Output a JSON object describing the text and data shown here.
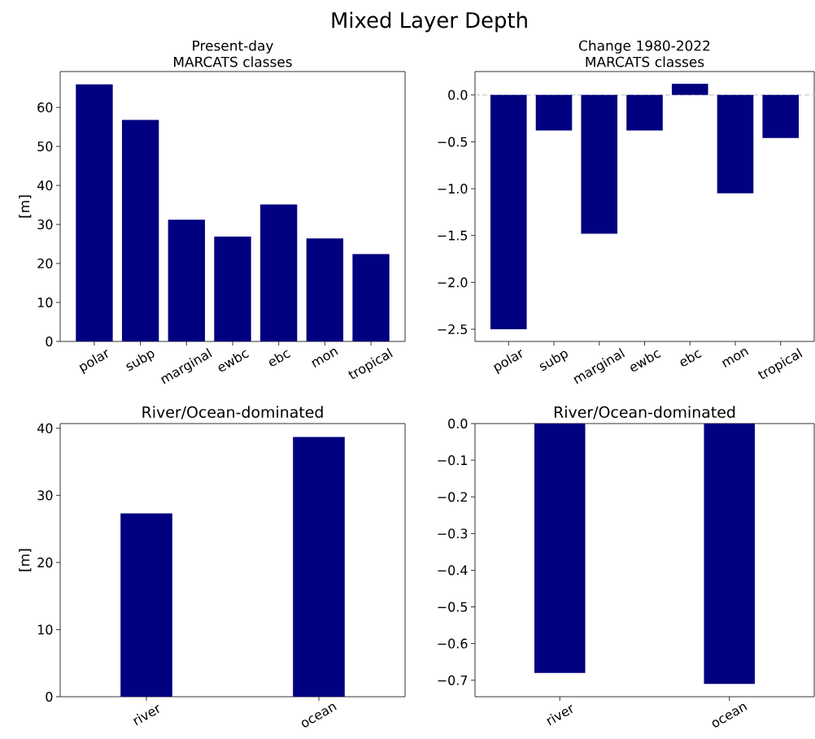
{
  "chart_data": [
    {
      "type": "bar",
      "title": "Present-day MARCATS classes",
      "ylabel": "[m]",
      "annotations": [
        "Mixed Layer Depth"
      ],
      "categories": [
        "polar",
        "subp",
        "marginal",
        "ewbc",
        "ebc",
        "mon",
        "tropical"
      ],
      "values": [
        65.9,
        56.8,
        31.2,
        26.9,
        35.1,
        26.4,
        22.4
      ],
      "color": "#000080",
      "ylim": [
        0,
        69.2
      ],
      "yticks": [
        0,
        10,
        20,
        30,
        40,
        50,
        60
      ]
    },
    {
      "type": "bar",
      "title": "Change 1980-2022 MARCATS classes",
      "categories": [
        "polar",
        "subp",
        "marginal",
        "ewbc",
        "ebc",
        "mon",
        "tropical"
      ],
      "values": [
        -2.5,
        -0.38,
        -1.48,
        -0.38,
        0.12,
        -1.05,
        -0.46
      ],
      "color": "#000080",
      "ylim": [
        -2.63,
        0.25
      ],
      "yticks": [
        {
          "value": -2.5,
          "label": "−2.5"
        },
        {
          "value": -2.0,
          "label": "−2.0"
        },
        {
          "value": -1.5,
          "label": "−1.5"
        },
        {
          "value": -1.0,
          "label": "−1.0"
        },
        {
          "value": -0.5,
          "label": "−0.5"
        },
        {
          "value": 0,
          "label": "0.0"
        }
      ],
      "ref_lines": [
        {
          "axis": "y",
          "value": 0,
          "color": "#cccccc",
          "line_style": "dashed"
        }
      ]
    },
    {
      "type": "bar",
      "title": "River/Ocean-dominated",
      "ylabel": "[m]",
      "categories": [
        "river",
        "ocean"
      ],
      "values": [
        27.3,
        38.7
      ],
      "color": "#000080",
      "ylim": [
        0,
        40.7
      ],
      "yticks": [
        0,
        10,
        20,
        30,
        40
      ]
    },
    {
      "type": "bar",
      "title": "River/Ocean-dominated",
      "categories": [
        "river",
        "ocean"
      ],
      "values": [
        -0.68,
        -0.71
      ],
      "color": "#000080",
      "yticks": [
        {
          "value": -0.7,
          "label": "−0.7"
        },
        {
          "value": -0.6,
          "label": "−0.6"
        },
        {
          "value": -0.5,
          "label": "−0.5"
        },
        {
          "value": -0.4,
          "label": "−0.4"
        },
        {
          "value": -0.3,
          "label": "−0.3"
        },
        {
          "value": -0.2,
          "label": "−0.2"
        },
        {
          "value": -0.1,
          "label": "−0.1"
        },
        {
          "value": 0,
          "label": "0.0"
        }
      ],
      "ylim": [
        -0.745,
        0
      ]
    }
  ]
}
